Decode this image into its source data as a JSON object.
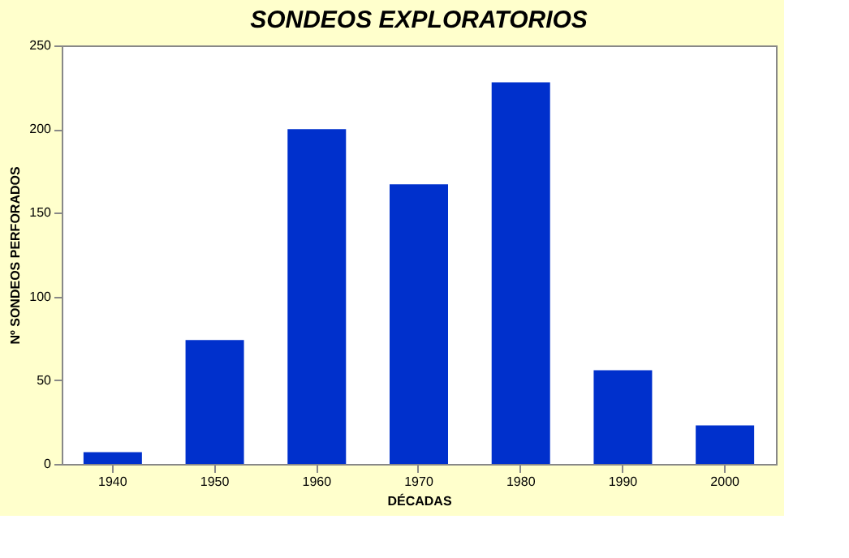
{
  "chart_data": {
    "type": "bar",
    "title": "SONDEOS EXPLORATORIOS",
    "xlabel": "DÉCADAS",
    "ylabel": "Nº SONDEOS PERFORADOS",
    "categories": [
      "1940",
      "1950",
      "1960",
      "1970",
      "1980",
      "1990",
      "2000"
    ],
    "values": [
      7,
      74,
      200,
      167,
      228,
      56,
      23
    ],
    "color": "#0030cc",
    "ylim": [
      0,
      250
    ],
    "yticks": [
      0,
      50,
      100,
      150,
      200,
      250
    ],
    "grid": false
  }
}
